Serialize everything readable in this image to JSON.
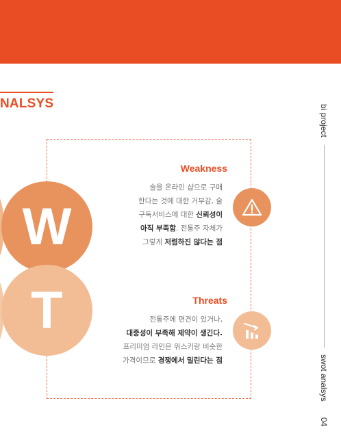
{
  "section_title": "NALSYS",
  "weakness": {
    "heading": "Weakness",
    "line1": "술을 온라인 샵으로 구매",
    "line2": "한다는 것에 대한 거부감, 술",
    "line3a": "구독서비스에 대한 ",
    "line3b": "신뢰성이",
    "line4a": "아직 부족함",
    "line4b": ". 전통주 자체가",
    "line5a": "그렇게 ",
    "line5b": "저렴하진 않다는 점",
    "letter": "W",
    "icon": "warning-triangle-icon"
  },
  "threats": {
    "heading": "Threats",
    "line1": "전통주에 편견이 있거나,",
    "line2": "대중성이 부족해 제약이 생긴다.",
    "line3": "프리미엄 라인은 위스키랑 비슷한",
    "line4a": "가격이므로 ",
    "line4b": "경쟁에서 밀린다는 점",
    "letter": "T",
    "icon": "declining-bar-chart-icon"
  },
  "side": {
    "project": "bi project",
    "section": "swot analsys",
    "page": "04"
  },
  "colors": {
    "accent": "#e84d23",
    "w_circle": "#e8935d",
    "t_circle": "#f2bd94"
  }
}
